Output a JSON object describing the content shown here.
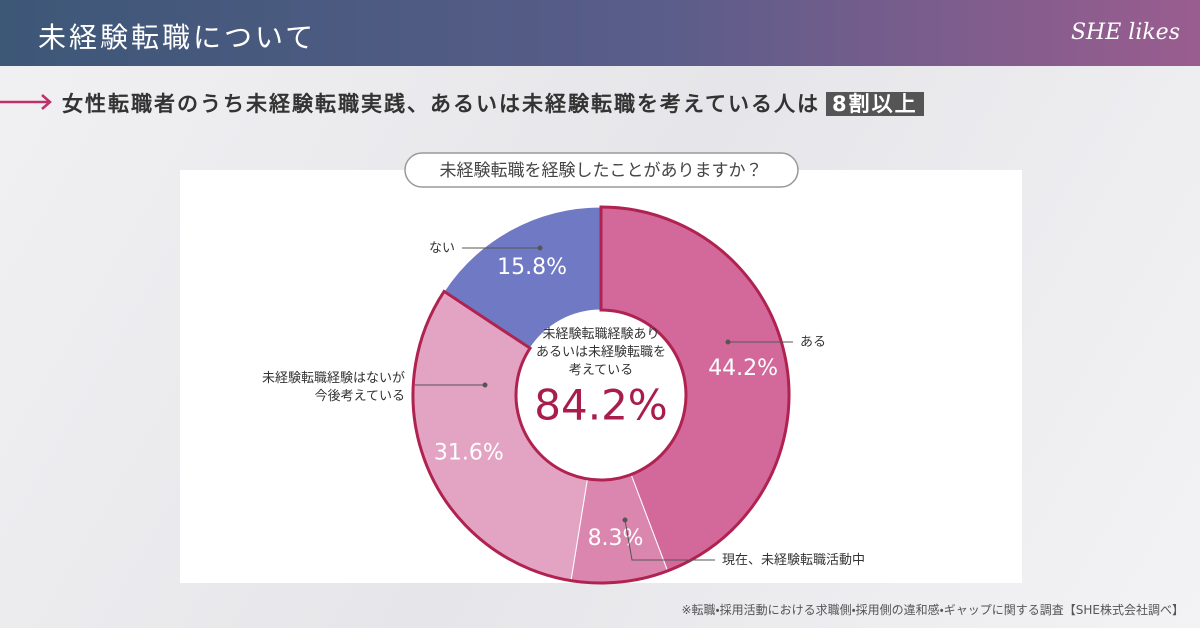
{
  "header": {
    "title": "未経験転職について",
    "logo": "SHE likes"
  },
  "headline": {
    "text": "女性転職者のうち未経験転職実践、あるいは未経験転職を考えている人は",
    "highlight": "8割以上"
  },
  "chart_data": {
    "type": "donut",
    "title": "未経験転職を経験したことがありますか？",
    "categories": [
      "ある",
      "現在、未経験転職活動中",
      "未経験転職経験はないが\n今後考えている",
      "ない"
    ],
    "values": [
      44.2,
      8.3,
      31.6,
      15.8
    ],
    "value_labels": [
      "44.2%",
      "8.3%",
      "31.6%",
      "15.8%"
    ],
    "colors": [
      "#d3699b",
      "#db86af",
      "#e3a4c3",
      "#6f79c4"
    ],
    "center_text": "未経験転職経験あり\nあるいは未経験転職を\n考えている",
    "center_value": 84.2,
    "center_value_label": "84.2%"
  },
  "footnote": "※転職・採用活動における求職側・採用側の違和感・ギャップに関する調査【SHE株式会社調べ】"
}
